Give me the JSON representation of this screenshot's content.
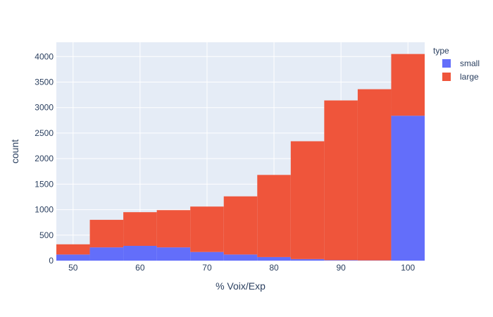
{
  "chart_data": {
    "type": "bar",
    "barmode": "stack",
    "xlabel": "% Voix/Exp",
    "ylabel": "count",
    "xlim": [
      47.5,
      102.5
    ],
    "ylim": [
      0,
      4280
    ],
    "x_ticks": [
      50,
      60,
      70,
      80,
      90,
      100
    ],
    "y_ticks": [
      0,
      500,
      1000,
      1500,
      2000,
      2500,
      3000,
      3500,
      4000
    ],
    "bins": [
      {
        "start": 47.5,
        "end": 52.5
      },
      {
        "start": 52.5,
        "end": 57.5
      },
      {
        "start": 57.5,
        "end": 62.5
      },
      {
        "start": 62.5,
        "end": 67.5
      },
      {
        "start": 67.5,
        "end": 72.5
      },
      {
        "start": 72.5,
        "end": 77.5
      },
      {
        "start": 77.5,
        "end": 82.5
      },
      {
        "start": 82.5,
        "end": 87.5
      },
      {
        "start": 87.5,
        "end": 92.5
      },
      {
        "start": 92.5,
        "end": 97.5
      },
      {
        "start": 97.5,
        "end": 102.5
      }
    ],
    "series": [
      {
        "name": "small",
        "color": "#636efa",
        "values": [
          120,
          260,
          290,
          260,
          170,
          120,
          70,
          30,
          10,
          5,
          2840
        ]
      },
      {
        "name": "large",
        "color": "#ef553b",
        "values": [
          200,
          540,
          660,
          730,
          890,
          1140,
          1610,
          2310,
          3130,
          3355,
          1210
        ]
      }
    ],
    "legend": {
      "title": "type",
      "placement": "top-right"
    },
    "grid": true,
    "plot_bg": "#e5ecf6"
  }
}
